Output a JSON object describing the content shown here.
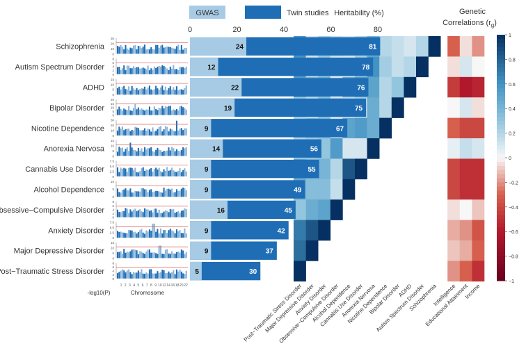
{
  "chart_data": {
    "type": "bar",
    "legend": {
      "gwas": "GWAS",
      "twin": "Twin studies",
      "gwas_color": "#a7cbe5",
      "twin_color": "#1f6eb5"
    },
    "heritability_title": "Heritability (%)",
    "heritability_ticks": [
      "0",
      "20",
      "40",
      "60",
      "80"
    ],
    "xlim": [
      0,
      80
    ],
    "disorders": [
      {
        "name": "Schizophrenia",
        "gwas": 24,
        "twin": 81,
        "gwas_label": "24",
        "twin_label": "81"
      },
      {
        "name": "Autism Spectrum Disorder",
        "gwas": 12,
        "twin": 78,
        "gwas_label": "12",
        "twin_label": "78"
      },
      {
        "name": "ADHD",
        "gwas": 22,
        "twin": 76,
        "gwas_label": "22",
        "twin_label": "76"
      },
      {
        "name": "Bipolar Disorder",
        "gwas": 19,
        "twin": 75,
        "gwas_label": "19",
        "twin_label": "75"
      },
      {
        "name": "Nicotine Dependence",
        "gwas": 9,
        "twin": 67,
        "gwas_label": "9",
        "twin_label": "67"
      },
      {
        "name": "Anorexia Nervosa",
        "gwas": 14,
        "twin": 56,
        "gwas_label": "14",
        "twin_label": "56"
      },
      {
        "name": "Cannabis Use Disorder",
        "gwas": 9,
        "twin": 55,
        "gwas_label": "9",
        "twin_label": "55"
      },
      {
        "name": "Alcohol Dependence",
        "gwas": 9,
        "twin": 49,
        "gwas_label": "9",
        "twin_label": "49"
      },
      {
        "name": "Obsessive−Compulsive Disorder",
        "gwas": 16,
        "twin": 45,
        "gwas_label": "16",
        "twin_label": "45"
      },
      {
        "name": "Anxiety Disorder",
        "gwas": 9,
        "twin": 42,
        "gwas_label": "9",
        "twin_label": "42"
      },
      {
        "name": "Major Depressive Disorder",
        "gwas": 9,
        "twin": 37,
        "gwas_label": "9",
        "twin_label": "37"
      },
      {
        "name": "Post−Traumatic Stress Disorder",
        "gwas": 5,
        "twin": 30,
        "gwas_label": "5",
        "twin_label": "30"
      }
    ],
    "manhattan": {
      "ylabel": "-log10(P)",
      "xlabel": "Chromosome",
      "chrom_ticks": [
        "1",
        "2",
        "3",
        "4",
        "5",
        "6",
        "7",
        "8",
        "9",
        "10",
        "12",
        "14",
        "16",
        "18",
        "20",
        "22"
      ],
      "row_ticks": [
        [
          "30",
          "20",
          "10",
          "0"
        ],
        [
          "8",
          "6",
          "4",
          "2",
          "0"
        ],
        [
          "15",
          "10",
          "5",
          "0"
        ],
        [
          "20",
          "15",
          "10",
          "5",
          "0"
        ],
        [
          "30",
          "20",
          "10",
          "0"
        ],
        [
          "15",
          "10",
          "5",
          "0"
        ],
        [
          "7.5",
          "5.0",
          "2.5",
          "0"
        ],
        [
          "10",
          "5",
          "0"
        ],
        [
          "8",
          "6",
          "4",
          "2",
          "0"
        ],
        [
          "7.5",
          "5.0",
          "2.5",
          "0"
        ],
        [
          "15",
          "10",
          "5",
          "0"
        ],
        [
          "8",
          "6",
          "4",
          "2",
          "0"
        ]
      ]
    },
    "genetic_correlations": {
      "title_line1": "Genetic",
      "title_line2": "Correlations (r",
      "title_sub": "g",
      "title_end": ")",
      "traits": [
        "Post−Traumatic Stress Disorder",
        "Major Depressive Disorder",
        "Anxiety Disorder",
        "Obsessive−Compulsive Disorder",
        "Alcohol Dependence",
        "Cannabis Use Disorder",
        "Anorexia Nervosa",
        "Nicotine Dependence",
        "Bipolar Disorder",
        "ADHD",
        "Autism Spectrum Disorder",
        "Schizophrenia"
      ],
      "extra_columns": [
        "Intelligence",
        "Educational Attainment",
        "Income"
      ],
      "matrix": [
        [
          0.6,
          0.1,
          0.25,
          0.15,
          0.1,
          0.2,
          0.4,
          0.2,
          0.15,
          0.1,
          0.2,
          1
        ],
        [
          0.6,
          0.15,
          0.3,
          0.1,
          0.1,
          0.3,
          0.6,
          0.25,
          0.15,
          0.2,
          1,
          null
        ],
        [
          0.55,
          0.4,
          0.45,
          0.1,
          0.45,
          0.55,
          0.5,
          0.2,
          0.3,
          1,
          null,
          null
        ],
        [
          0.2,
          0.1,
          0.3,
          0.1,
          0.1,
          0.15,
          0.45,
          0.2,
          1,
          null,
          null,
          null
        ],
        [
          0.3,
          0.4,
          0.4,
          0.15,
          0.5,
          0.55,
          0.45,
          1,
          null,
          null,
          null,
          null
        ],
        [
          0.2,
          0.25,
          0.3,
          0.55,
          0.1,
          0.1,
          1,
          null,
          null,
          null,
          null,
          null
        ],
        [
          0.5,
          0.4,
          0.4,
          0.2,
          0.85,
          1,
          null,
          null,
          null,
          null,
          null,
          null
        ],
        [
          0.45,
          0.35,
          0.35,
          0.15,
          1,
          null,
          null,
          null,
          null,
          null,
          null,
          null
        ],
        [
          0.3,
          0.45,
          0.5,
          1,
          null,
          null,
          null,
          null,
          null,
          null,
          null,
          null
        ],
        [
          0.7,
          0.85,
          1,
          null,
          null,
          null,
          null,
          null,
          null,
          null,
          null,
          null
        ],
        [
          0.75,
          1,
          null,
          null,
          null,
          null,
          null,
          null,
          null,
          null,
          null,
          null
        ],
        [
          1,
          null,
          null,
          null,
          null,
          null,
          null,
          null,
          null,
          null,
          null,
          null
        ]
      ],
      "extra_matrix": [
        [
          -0.3,
          -0.05,
          -0.2
        ],
        [
          -0.05,
          0.1,
          0.0
        ],
        [
          -0.45,
          -0.6,
          -0.55
        ],
        [
          0.0,
          0.1,
          -0.05
        ],
        [
          -0.3,
          -0.4,
          -0.4
        ],
        [
          0.05,
          0.15,
          0.1
        ],
        [
          -0.4,
          -0.5,
          -0.5
        ],
        [
          -0.4,
          -0.5,
          -0.5
        ],
        [
          -0.05,
          0.0,
          -0.1
        ],
        [
          -0.15,
          -0.2,
          -0.35
        ],
        [
          -0.1,
          -0.15,
          -0.3
        ],
        [
          -0.2,
          -0.3,
          -0.5
        ]
      ],
      "colorbar_ticks": [
        "1",
        "0.8",
        "0.6",
        "0.4",
        "0.2",
        "0",
        "−0.2",
        "−0.4",
        "−0.6",
        "−0.8",
        "−1"
      ],
      "colors": {
        "neg": "#67001f",
        "mid": "#f7f7f7",
        "pos": "#053061"
      }
    }
  }
}
